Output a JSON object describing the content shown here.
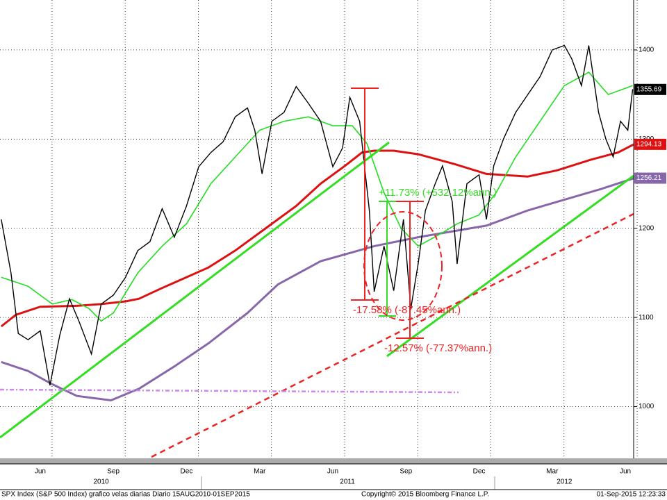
{
  "chart_data": {
    "type": "line",
    "xlim": [
      3.85,
      29.84
    ],
    "ylim": [
      942,
      1456
    ],
    "yticks": [
      1000,
      1100,
      1200,
      1300,
      1400
    ],
    "xticks": [
      {
        "value": 5.5,
        "label": "Jun"
      },
      {
        "value": 8.5,
        "label": "Sep"
      },
      {
        "value": 11.5,
        "label": "Dec"
      },
      {
        "value": 14.5,
        "label": "Mar"
      },
      {
        "value": 17.5,
        "label": "Jun"
      },
      {
        "value": 20.5,
        "label": "Sep"
      },
      {
        "value": 23.5,
        "label": "Dec"
      },
      {
        "value": 26.5,
        "label": "Mar"
      },
      {
        "value": 29.5,
        "label": "Jun"
      }
    ],
    "year_ticks": [
      {
        "value": 8,
        "label": "2010"
      },
      {
        "value": 18.1,
        "label": "2011"
      },
      {
        "value": 27,
        "label": "2012"
      }
    ],
    "grid": true,
    "series": [
      {
        "color": "#000000",
        "width": 1.4,
        "x": [
          3.9,
          4.3,
          4.6,
          5.0,
          5.5,
          5.9,
          6.3,
          6.7,
          7.1,
          7.6,
          8.0,
          8.5,
          9.0,
          9.5,
          10.0,
          10.5,
          11.0,
          11.5,
          12.0,
          12.5,
          13.0,
          13.5,
          14.0,
          14.3,
          14.6,
          15.0,
          15.5,
          16.0,
          16.5,
          17.0,
          17.5,
          17.9,
          18.2,
          18.6,
          19.0,
          19.2,
          19.6,
          20.0,
          20.4,
          20.7,
          21.0,
          21.3,
          21.7,
          22.0,
          22.4,
          22.6,
          23.0,
          23.5,
          23.8,
          24.1,
          24.5,
          25.0,
          25.5,
          26.0,
          26.5,
          27.0,
          27.3,
          27.7,
          28.0,
          28.4,
          28.7,
          29.0,
          29.3,
          29.6,
          29.8
        ],
        "values": [
          1210,
          1150,
          1082,
          1075,
          1085,
          1024,
          1080,
          1121,
          1095,
          1059,
          1115,
          1125,
          1145,
          1175,
          1185,
          1222,
          1190,
          1225,
          1269,
          1285,
          1297,
          1325,
          1335,
          1310,
          1261,
          1320,
          1330,
          1359,
          1340,
          1320,
          1269,
          1290,
          1347,
          1320,
          1220,
          1129,
          1180,
          1130,
          1210,
          1110,
          1160,
          1220,
          1250,
          1270,
          1230,
          1160,
          1250,
          1260,
          1210,
          1270,
          1300,
          1330,
          1350,
          1370,
          1400,
          1405,
          1390,
          1360,
          1405,
          1330,
          1300,
          1280,
          1320,
          1310,
          1356
        ]
      },
      {
        "color": "#22dd22",
        "width": 1.6,
        "x": [
          3.9,
          5,
          6,
          6.8,
          7.5,
          8.0,
          8.5,
          9.5,
          10.5,
          11.5,
          12.5,
          13.5,
          14.5,
          15.5,
          16.5,
          17.5,
          18.3,
          18.9,
          19.6,
          20.3,
          21.0,
          22.0,
          22.6,
          23.5,
          24.2,
          25,
          26,
          27,
          28,
          28.8,
          29.3,
          29.8
        ],
        "values": [
          1145,
          1135,
          1115,
          1120,
          1110,
          1096,
          1105,
          1150,
          1180,
          1205,
          1250,
          1280,
          1310,
          1320,
          1325,
          1315,
          1315,
          1295,
          1240,
          1200,
          1180,
          1195,
          1205,
          1215,
          1240,
          1280,
          1320,
          1360,
          1375,
          1350,
          1355,
          1360
        ]
      },
      {
        "color": "#dd1111",
        "width": 3,
        "x": [
          3.9,
          4.5,
          5.5,
          7,
          8,
          9,
          9.55,
          10.5,
          11.5,
          12.4,
          13.5,
          14.7,
          16,
          17,
          18,
          18.7,
          19.2,
          20,
          21,
          22.5,
          23.8,
          25.5,
          26.7,
          28.1,
          29.2,
          29.84
        ],
        "values": [
          1090,
          1103,
          1112,
          1113,
          1115,
          1118,
          1121,
          1133,
          1145,
          1156,
          1175,
          1199,
          1225,
          1250,
          1270,
          1285,
          1287,
          1287,
          1283,
          1272,
          1261,
          1258,
          1265,
          1277,
          1285,
          1294
        ]
      },
      {
        "color": "#8866aa",
        "width": 3,
        "x": [
          3.9,
          5,
          6,
          7,
          8.4,
          9.55,
          11,
          12.4,
          14,
          15.25,
          17,
          19.2,
          21,
          22.5,
          23.8,
          25.5,
          27,
          28.5,
          29.84
        ],
        "values": [
          1050,
          1040,
          1025,
          1012,
          1007,
          1020,
          1045,
          1071,
          1105,
          1137,
          1163,
          1180,
          1190,
          1197,
          1203,
          1220,
          1232,
          1244,
          1256
        ]
      }
    ],
    "last_values": [
      {
        "value": 1355.69,
        "label": "1355.69",
        "color": "#000000"
      },
      {
        "value": 1294.13,
        "label": "1294.13",
        "color": "#dd1111"
      },
      {
        "value": 1256.21,
        "label": "1256.21",
        "color": "#8866aa"
      }
    ],
    "annotations": [
      "+11.73% (+532.12%ann.)",
      "-17.58% (-87.45%ann.)",
      "-12.57% (-77.37%ann.)"
    ],
    "footer": {
      "left": "SPX Index (S&P 500 Index) grafico velas diarias  Diario 15AUG2010-01SEP2015",
      "center": "Copyright© 2015 Bloomberg Finance L.P.",
      "right": "01-Sep-2015 12:23:33"
    }
  }
}
